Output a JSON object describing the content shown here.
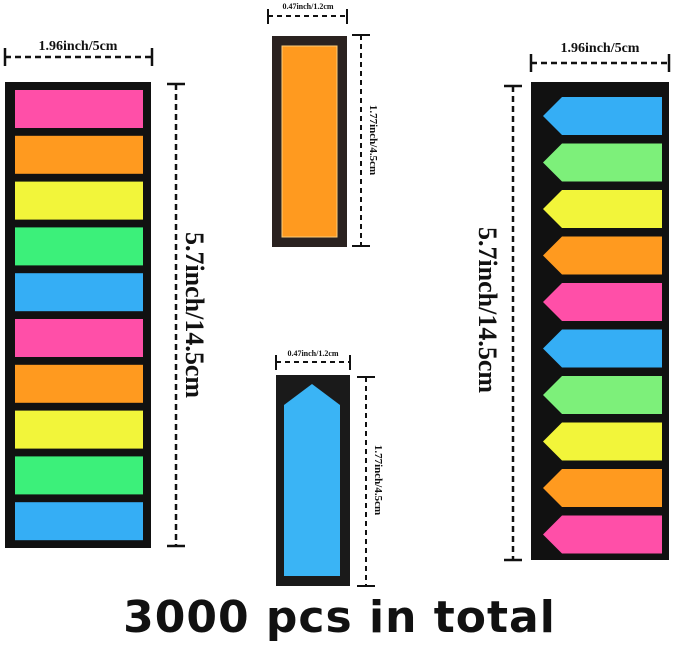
{
  "left_pack": {
    "width_label": "1.96inch/5cm",
    "height_label": "5.7inch/14.5cm",
    "tab_shape": "rectangle",
    "tab_colors": [
      "#ff4fa8",
      "#ff9a1f",
      "#f2f53a",
      "#3cf07a",
      "#35aef5",
      "#ff4fa8",
      "#ff9a1f",
      "#f2f53a",
      "#3cf07a",
      "#35aef5"
    ]
  },
  "single_rect": {
    "width_label": "0.47inch/1.2cm",
    "height_label": "1.77inch/4.5cm",
    "color": "#ff9a1f"
  },
  "single_arrow": {
    "width_label": "0.47inch/1.2cm",
    "height_label": "1.77inch/4.5cm",
    "color": "#3ab4f5"
  },
  "right_pack": {
    "width_label": "1.96inch/5cm",
    "height_label": "5.7inch/14.5cm",
    "tab_shape": "arrow-left",
    "tab_colors": [
      "#35aef5",
      "#7df07a",
      "#f2f53a",
      "#ff9a1f",
      "#ff4fa8",
      "#35aef5",
      "#7df07a",
      "#f2f53a",
      "#ff9a1f",
      "#ff4fa8"
    ]
  },
  "caption": "3000 pcs in total"
}
